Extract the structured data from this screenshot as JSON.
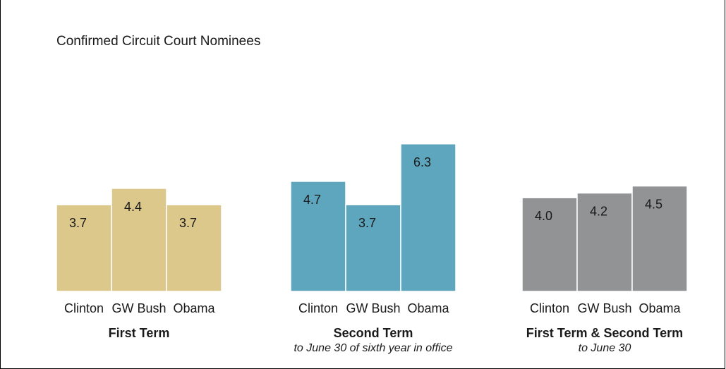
{
  "chart_data": {
    "type": "bar",
    "title": "Confirmed Circuit Court Nominees",
    "xlabel": "",
    "ylabel": "",
    "grid": false,
    "groups": [
      {
        "label": "First Term",
        "sublabel": "",
        "color": "#dcc88a",
        "categories": [
          "Clinton",
          "GW Bush",
          "Obama"
        ],
        "values": [
          3.7,
          4.4,
          3.7
        ],
        "value_labels": [
          "3.7",
          "4.4",
          "3.7"
        ]
      },
      {
        "label": "Second Term",
        "sublabel": "to June 30 of sixth year in office",
        "color": "#5ea6bd",
        "categories": [
          "Clinton",
          "GW Bush",
          "Obama"
        ],
        "values": [
          4.7,
          3.7,
          6.3
        ],
        "value_labels": [
          "4.7",
          "3.7",
          "6.3"
        ]
      },
      {
        "label": "First Term & Second Term",
        "sublabel": "to June 30",
        "color": "#929395",
        "categories": [
          "Clinton",
          "GW Bush",
          "Obama"
        ],
        "values": [
          4.0,
          4.2,
          4.5
        ],
        "value_labels": [
          "4.0",
          "4.2",
          "4.5"
        ]
      }
    ]
  }
}
